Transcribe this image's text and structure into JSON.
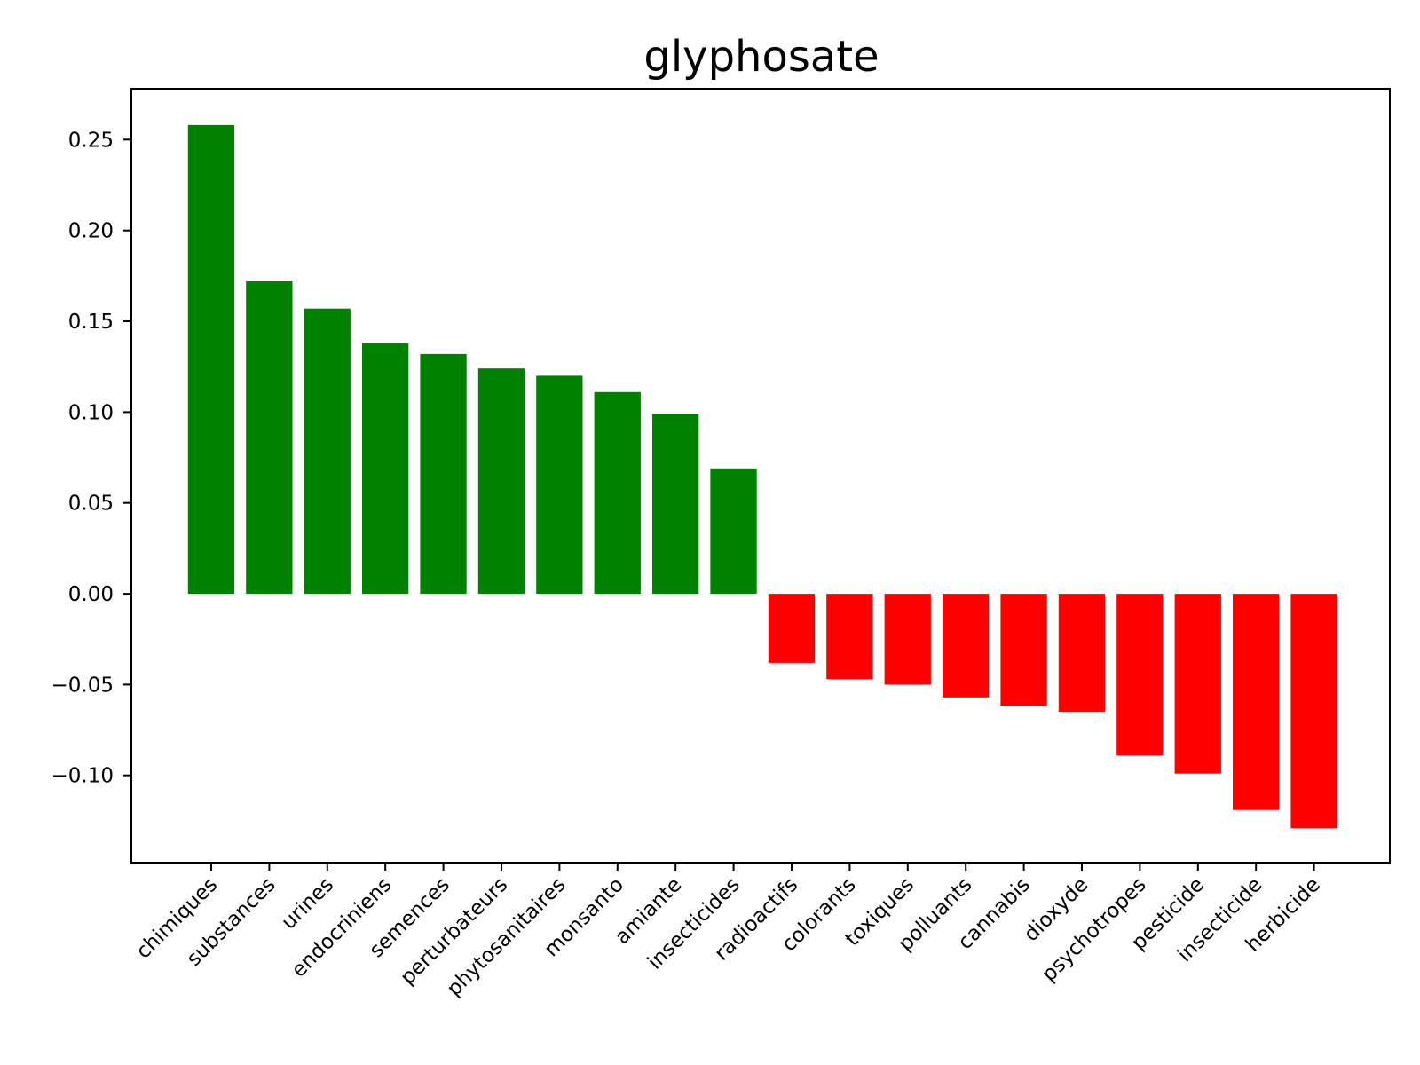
{
  "chart_data": {
    "type": "bar",
    "title": "glyphosate",
    "xlabel": "",
    "ylabel": "",
    "categories": [
      "chimiques",
      "substances",
      "urines",
      "endocriniens",
      "semences",
      "perturbateurs",
      "phytosanitaires",
      "monsanto",
      "amiante",
      "insecticides",
      "radioactifs",
      "colorants",
      "toxiques",
      "polluants",
      "cannabis",
      "dioxyde",
      "psychotropes",
      "pesticide",
      "insecticide",
      "herbicide"
    ],
    "values": [
      0.258,
      0.172,
      0.157,
      0.138,
      0.132,
      0.124,
      0.12,
      0.111,
      0.099,
      0.069,
      -0.038,
      -0.047,
      -0.05,
      -0.057,
      -0.062,
      -0.065,
      -0.089,
      -0.099,
      -0.119,
      -0.129
    ],
    "ylim": [
      -0.148,
      0.278
    ],
    "yticks": [
      -0.1,
      -0.05,
      0.0,
      0.05,
      0.1,
      0.15,
      0.2,
      0.25
    ],
    "ytick_labels": [
      "−0.10",
      "−0.05",
      "0.00",
      "0.05",
      "0.10",
      "0.15",
      "0.20",
      "0.25"
    ],
    "colors": {
      "positive": "#008000",
      "negative": "#ff0000"
    },
    "grid": false,
    "legend": "none",
    "xtick_rotation_deg": 45
  }
}
